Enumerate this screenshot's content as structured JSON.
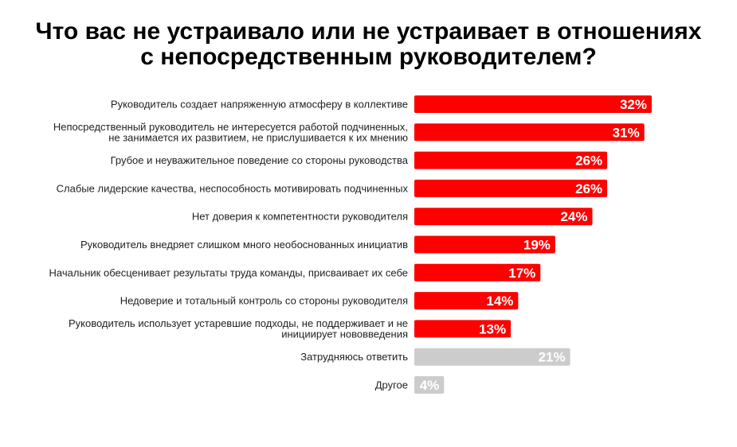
{
  "chart_data": {
    "type": "bar",
    "orientation": "horizontal",
    "title_lines": [
      "Что вас не устраивало или не устраивает в отношениях",
      "с непосредственным руководителем?"
    ],
    "categories": [
      [
        "Руководитель создает напряженную атмосферу в коллективе"
      ],
      [
        "Непосредственный руководитель не интересуется работой подчиненных,",
        "не занимается их развитием, не прислушивается к их мнению"
      ],
      [
        "Грубое и неуважительное поведение со стороны руководства"
      ],
      [
        "Слабые лидерские качества, неспособность мотивировать подчиненных"
      ],
      [
        "Нет доверия к компетентности руководителя"
      ],
      [
        "Руководитель внедряет слишком много необоснованных инициатив"
      ],
      [
        "Начальник обесценивает результаты труда команды, присваивает их себе"
      ],
      [
        "Недоверие и тотальный контроль со стороны руководителя"
      ],
      [
        "Руководитель использует устаревшие подходы, не поддерживает и не",
        "инициирует нововведения"
      ],
      [
        "Затрудняюсь ответить"
      ],
      [
        "Другое"
      ]
    ],
    "values": [
      32,
      31,
      26,
      26,
      24,
      19,
      17,
      14,
      13,
      21,
      4
    ],
    "value_labels": [
      "32%",
      "31%",
      "26%",
      "26%",
      "24%",
      "19%",
      "17%",
      "14%",
      "13%",
      "21%",
      "4%"
    ],
    "bar_colors": [
      "#ff0000",
      "#ff0000",
      "#ff0000",
      "#ff0000",
      "#ff0000",
      "#ff0000",
      "#ff0000",
      "#ff0000",
      "#ff0000",
      "#cccccc",
      "#cccccc"
    ],
    "unit": "%",
    "xlim": [
      0,
      32
    ],
    "grid": false,
    "legend": "none"
  }
}
